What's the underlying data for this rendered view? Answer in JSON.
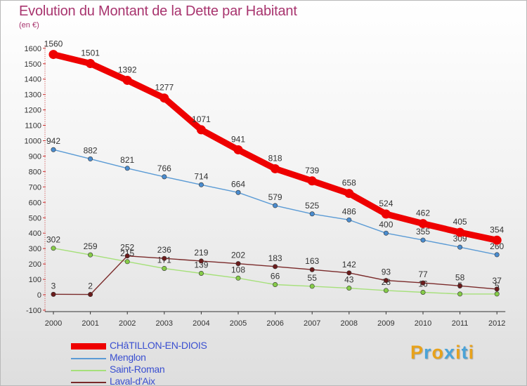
{
  "title": "Evolution du Montant de la Dette par Habitant",
  "unit_label": "(en €)",
  "logo": {
    "text": "Proxiti",
    "colors": [
      "#e8a21b",
      "#4aa3d8",
      "#e8a21b",
      "#4aa3d8",
      "#e8a21b",
      "#4aa3d8",
      "#e8a21b"
    ]
  },
  "chart_data": {
    "type": "line",
    "title": "Evolution du Montant de la Dette par Habitant",
    "ylabel": "(en €)",
    "xlabel": "",
    "x": [
      "2000",
      "2001",
      "2002",
      "2003",
      "2004",
      "2005",
      "2006",
      "2007",
      "2008",
      "2009",
      "2010",
      "2011",
      "2012"
    ],
    "ylim": [
      -100,
      1600
    ],
    "yticks": [
      -100,
      0,
      100,
      200,
      300,
      400,
      500,
      600,
      700,
      800,
      900,
      1000,
      1100,
      1200,
      1300,
      1400,
      1500,
      1600
    ],
    "grid": false,
    "legend_position": "bottom-left",
    "series": [
      {
        "name": "CHâTILLON-EN-DIOIS",
        "color": "#ee0000",
        "marker_color": "#ee0000",
        "emphasis": true,
        "values": [
          1560,
          1501,
          1392,
          1277,
          1071,
          941,
          818,
          739,
          658,
          524,
          462,
          405,
          354
        ],
        "labels": [
          "1560",
          "1501",
          "1392",
          "1277",
          "1071",
          "941",
          "818",
          "739",
          "658",
          "524",
          "462",
          "405",
          "354"
        ]
      },
      {
        "name": "Menglon",
        "color": "#5b9bd5",
        "marker_color": "#4a8ccf",
        "values": [
          942,
          882,
          821,
          766,
          714,
          664,
          579,
          525,
          486,
          400,
          355,
          309,
          260
        ],
        "labels": [
          "942",
          "882",
          "821",
          "766",
          "714",
          "664",
          "579",
          "525",
          "486",
          "400",
          "355",
          "309",
          "260"
        ]
      },
      {
        "name": "Saint-Roman",
        "color": "#a6e07a",
        "marker_color": "#86cc48",
        "values": [
          302,
          259,
          215,
          171,
          139,
          108,
          66,
          55,
          43,
          28,
          16,
          5,
          5
        ],
        "labels": [
          "302",
          "259",
          "215",
          "171",
          "139",
          "108",
          "66",
          "55",
          "43",
          "28",
          "16",
          "5",
          "5"
        ]
      },
      {
        "name": "Laval-d'Aix",
        "color": "#7a2a2a",
        "marker_color": "#6b1b1b",
        "values": [
          3,
          2,
          252,
          236,
          219,
          202,
          183,
          163,
          142,
          93,
          77,
          58,
          37
        ],
        "labels": [
          "3",
          "2",
          "252",
          "236",
          "219",
          "202",
          "183",
          "163",
          "142",
          "93",
          "77",
          "58",
          "37"
        ]
      }
    ]
  }
}
